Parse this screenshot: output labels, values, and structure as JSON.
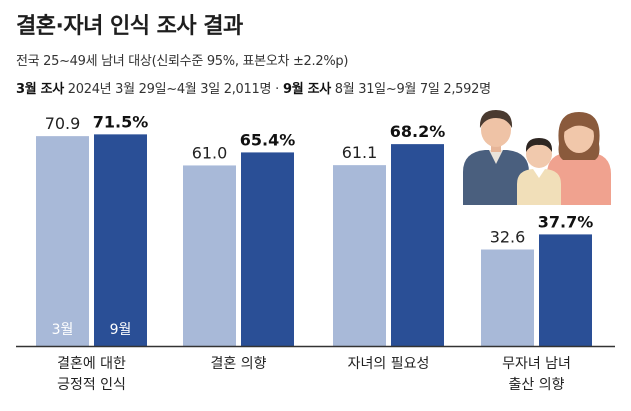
{
  "header": {
    "title": "결혼·자녀 인식 조사 결과",
    "subtitle": "전국 25~49세 남녀 대상(신뢰수준 95%, 표본오차 ±2.2%p)",
    "period1_label": "3월 조사",
    "period1_detail": "2024년 3월 29일~4월 3일 2,011명",
    "period_separator": "·",
    "period2_label": "9월 조사",
    "period2_detail": "8월 31일~9월 7일 2,592명"
  },
  "chart_data": {
    "type": "bar",
    "title": "결혼·자녀 인식 조사 결과",
    "categories": [
      [
        "결혼에 대한",
        "긍정적 인식"
      ],
      [
        "결혼 의향"
      ],
      [
        "자녀의 필요성"
      ],
      [
        "무자녀 남녀",
        "출산 의향"
      ]
    ],
    "series": [
      {
        "name": "3월",
        "values": [
          70.9,
          61.0,
          61.1,
          32.6
        ],
        "labels": [
          "70.9",
          "61.0",
          "61.1",
          "32.6"
        ],
        "color": "#a8b9d8"
      },
      {
        "name": "9월",
        "values": [
          71.5,
          65.4,
          68.2,
          37.7
        ],
        "labels": [
          "71.5%",
          "65.4%",
          "68.2%",
          "37.7%"
        ],
        "color": "#2a4f96"
      }
    ],
    "ylim": [
      0,
      80
    ],
    "grid": false,
    "legend": "inside-first-bars"
  },
  "colors": {
    "bar_3": "#a8b9d8",
    "bar_9": "#2a4f96",
    "baseline": "#333333"
  },
  "illustration": {
    "icon": "family-icon"
  }
}
